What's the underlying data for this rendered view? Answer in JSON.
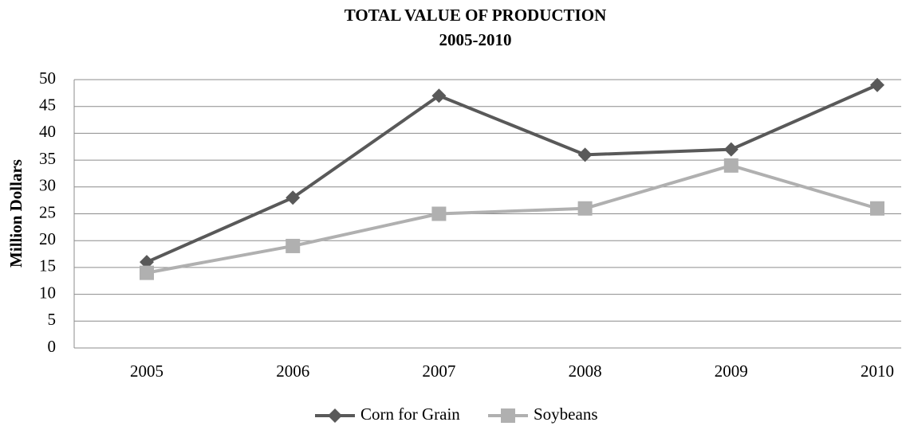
{
  "chart_data": {
    "type": "line",
    "title": "TOTAL VALUE OF PRODUCTION",
    "subtitle": "2005-2010",
    "y_label": "Million Dollars",
    "categories": [
      "2005",
      "2006",
      "2007",
      "2008",
      "2009",
      "2010"
    ],
    "series": [
      {
        "name": "Corn for Grain",
        "color": "#595959",
        "marker": "diamond",
        "values": [
          16,
          28,
          47,
          36,
          37,
          49
        ]
      },
      {
        "name": "Soybeans",
        "color": "#b0b0b0",
        "marker": "square",
        "values": [
          14,
          19,
          25,
          26,
          34,
          26
        ]
      }
    ],
    "ylim": [
      0,
      50
    ],
    "yticks": [
      0,
      5,
      10,
      15,
      20,
      25,
      30,
      35,
      40,
      45,
      50
    ],
    "grid": true,
    "legend": "bottom"
  }
}
